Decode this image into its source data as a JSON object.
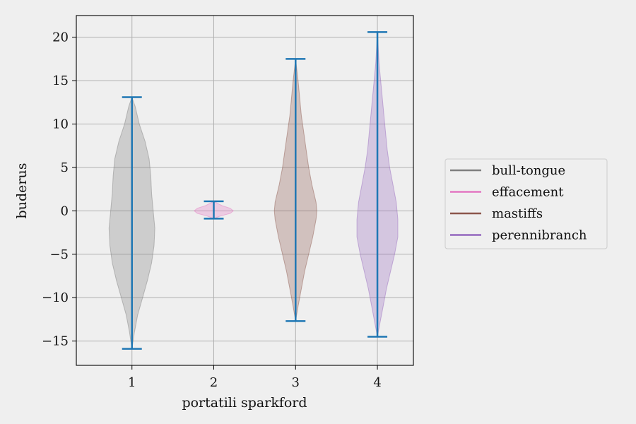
{
  "chart_data": {
    "type": "violin",
    "xlabel": "portatili sparkford",
    "ylabel": "buderus",
    "xlim": [
      0.32,
      4.44
    ],
    "ylim": [
      -17.8,
      22.5
    ],
    "xticks": [
      1,
      2,
      3,
      4
    ],
    "yticks": [
      -15,
      -10,
      -5,
      0,
      5,
      10,
      15,
      20
    ],
    "ytick_labels": [
      "−15",
      "−10",
      "−5",
      "0",
      "5",
      "10",
      "15",
      "20"
    ],
    "grid": true,
    "legend_position": "right",
    "line_color": "#1f77b4",
    "series": [
      {
        "name": "bull-tongue",
        "position": 1,
        "min": -15.9,
        "max": 13.1,
        "color": "#7f7f7f",
        "profile": [
          [
            -15.9,
            0.0
          ],
          [
            -14,
            0.03
          ],
          [
            -12,
            0.07
          ],
          [
            -10,
            0.13
          ],
          [
            -8,
            0.19
          ],
          [
            -6,
            0.24
          ],
          [
            -4,
            0.27
          ],
          [
            -2,
            0.28
          ],
          [
            0,
            0.26
          ],
          [
            2,
            0.24
          ],
          [
            4,
            0.23
          ],
          [
            6,
            0.21
          ],
          [
            8,
            0.16
          ],
          [
            10,
            0.09
          ],
          [
            12,
            0.04
          ],
          [
            13.1,
            0.0
          ]
        ]
      },
      {
        "name": "effacement",
        "position": 2,
        "min": -0.9,
        "max": 1.1,
        "color": "#e377c2",
        "profile": [
          [
            -0.9,
            0.0
          ],
          [
            -0.6,
            0.08
          ],
          [
            -0.3,
            0.2
          ],
          [
            0,
            0.24
          ],
          [
            0.3,
            0.2
          ],
          [
            0.6,
            0.1
          ],
          [
            1.1,
            0.0
          ]
        ]
      },
      {
        "name": "mastiffs",
        "position": 3,
        "min": -12.7,
        "max": 17.5,
        "color": "#8c564b",
        "profile": [
          [
            -12.7,
            0.0
          ],
          [
            -11,
            0.03
          ],
          [
            -9,
            0.07
          ],
          [
            -7,
            0.11
          ],
          [
            -5,
            0.16
          ],
          [
            -3,
            0.21
          ],
          [
            -1,
            0.25
          ],
          [
            0,
            0.26
          ],
          [
            1,
            0.25
          ],
          [
            3,
            0.2
          ],
          [
            5,
            0.16
          ],
          [
            7,
            0.13
          ],
          [
            9,
            0.1
          ],
          [
            11,
            0.07
          ],
          [
            13,
            0.05
          ],
          [
            15,
            0.03
          ],
          [
            17.5,
            0.0
          ]
        ]
      },
      {
        "name": "perennibranch",
        "position": 4,
        "min": -14.5,
        "max": 20.6,
        "color": "#9467bd",
        "profile": [
          [
            -14.5,
            0.0
          ],
          [
            -13,
            0.03
          ],
          [
            -11,
            0.07
          ],
          [
            -9,
            0.11
          ],
          [
            -7,
            0.16
          ],
          [
            -5,
            0.21
          ],
          [
            -3,
            0.25
          ],
          [
            -1,
            0.25
          ],
          [
            1,
            0.23
          ],
          [
            3,
            0.19
          ],
          [
            5,
            0.15
          ],
          [
            7,
            0.12
          ],
          [
            9,
            0.1
          ],
          [
            11,
            0.08
          ],
          [
            13,
            0.06
          ],
          [
            15,
            0.04
          ],
          [
            17,
            0.02
          ],
          [
            20.6,
            0.0
          ]
        ]
      }
    ]
  }
}
